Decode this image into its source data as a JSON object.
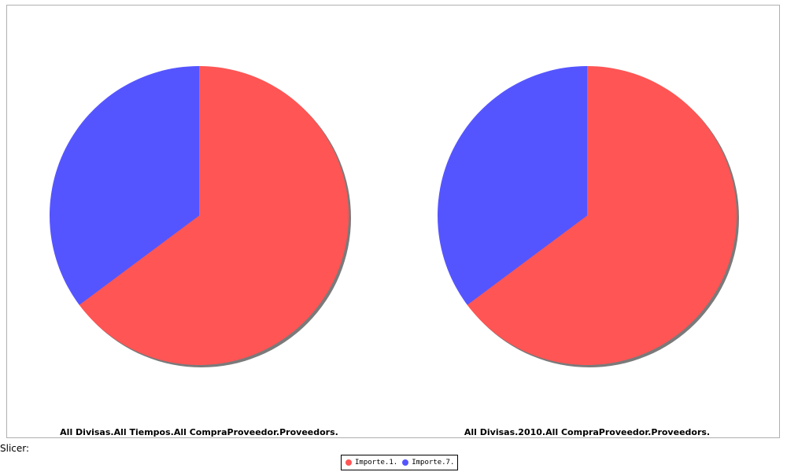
{
  "chart_data": [
    {
      "type": "pie",
      "title": "All Divisas.All Tiempos.All CompraProveedor.Proveedors.",
      "slices": [
        {
          "label": "Importe.1.",
          "value": 64.8,
          "color": "#ff5555"
        },
        {
          "label": "Importe.7.",
          "value": 35.2,
          "color": "#5555ff"
        }
      ]
    },
    {
      "type": "pie",
      "title": "All Divisas.2010.All CompraProveedor.Proveedors.",
      "slices": [
        {
          "label": "Importe.1.",
          "value": 64.8,
          "color": "#ff5555"
        },
        {
          "label": "Importe.7.",
          "value": 35.2,
          "color": "#5555ff"
        }
      ]
    }
  ],
  "slicer_label": "Slicer:",
  "legend": {
    "items": [
      {
        "label": "Importe.1.",
        "color": "#ff5555"
      },
      {
        "label": "Importe.7.",
        "color": "#5555ff"
      }
    ]
  }
}
